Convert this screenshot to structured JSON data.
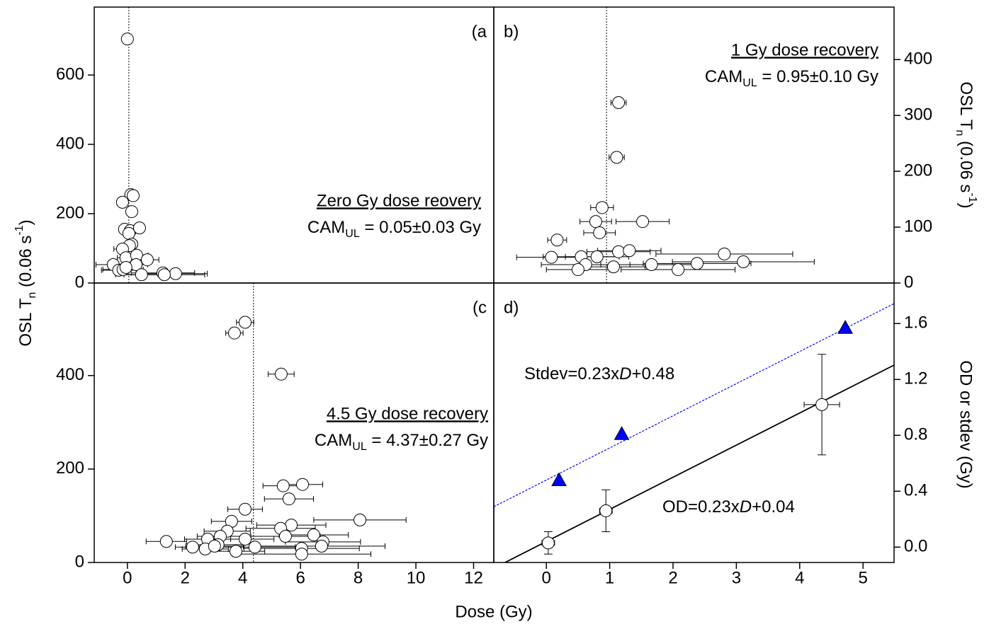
{
  "chart_data": [
    {
      "type": "scatter",
      "panel_label": "(a",
      "yaxis": "left",
      "xlim": [
        -1.15,
        12.7
      ],
      "ylim": [
        0,
        796
      ],
      "yticks": [
        0,
        200,
        400,
        600
      ],
      "ylabel": {
        "main": "OSL T",
        "sub": "n",
        "mid": " (0.06 s",
        "sup": "-1",
        "end": ")"
      },
      "annotation": {
        "title": "Zero Gy dose reovery",
        "cam": "CAM",
        "cam_sub": "UL",
        "cam_text": " = 0.05±0.03 Gy",
        "cam_value": 0.05
      },
      "series": [
        {
          "marker": "circle",
          "color": "#ffffff",
          "x": [
            0,
            0.12,
            0.2,
            -0.17,
            0.15,
            -0.1,
            0.1,
            0.42,
            0.05,
            0.15,
            0.07,
            -0.17,
            -0.05,
            0.32,
            0.69,
            -0.49,
            0.3,
            -0.3,
            -0.15,
            -0.05,
            0.49,
            1.23,
            1.67,
            1.28
          ],
          "values": [
            704,
            255,
            252,
            233,
            206,
            155,
            151,
            159,
            143,
            112,
            108,
            98,
            73,
            80,
            67,
            53,
            53,
            37,
            39,
            45,
            24,
            29,
            27,
            24
          ],
          "xerr": [
            0.05,
            0.1,
            0.1,
            0.1,
            0.1,
            0.15,
            0.15,
            0.15,
            0.15,
            0.2,
            0.2,
            0.3,
            0.3,
            0.4,
            0.4,
            0.6,
            0.4,
            0.6,
            0.7,
            0.5,
            0.9,
            1.1,
            1.1,
            1.4
          ]
        }
      ]
    },
    {
      "type": "scatter",
      "panel_label": "b)",
      "yaxis": "right",
      "xlim": [
        -0.83,
        5.49
      ],
      "ylim": [
        0,
        494
      ],
      "yticks": [
        0,
        100,
        200,
        300,
        400
      ],
      "ylabel": {
        "main": "OSL T",
        "sub": "n",
        "mid": " (0.06 s",
        "sup": "-1",
        "end": ")"
      },
      "annotation": {
        "title": "1 Gy dose recovery",
        "cam": "CAM",
        "cam_sub": "UL",
        "cam_text": " = 0.95±0.10 Gy",
        "cam_value": 0.95
      },
      "series": [
        {
          "marker": "circle",
          "color": "#ffffff",
          "x": [
            1.14,
            1.11,
            0.88,
            1.52,
            0.78,
            0.84,
            0.17,
            1.14,
            1.31,
            2.81,
            0.08,
            0.55,
            0.8,
            3.11,
            0.62,
            1.66,
            2.38,
            1.06,
            0.5,
            2.08
          ],
          "values": [
            323,
            225,
            135,
            110,
            110,
            90,
            77,
            56,
            58,
            52,
            46,
            47,
            47,
            38,
            33,
            33,
            35,
            29,
            24,
            24
          ],
          "xerr": [
            0.12,
            0.12,
            0.18,
            0.42,
            0.25,
            0.25,
            0.15,
            0.5,
            0.5,
            1.08,
            0.55,
            0.6,
            0.5,
            1.12,
            0.7,
            0.8,
            0.85,
            0.5,
            0.5,
            0.9
          ]
        }
      ]
    },
    {
      "type": "scatter",
      "panel_label": "(c",
      "yaxis": "left",
      "xlim": [
        -1.15,
        12.7
      ],
      "ylim": [
        0,
        598
      ],
      "yticks": [
        0,
        200,
        400
      ],
      "xticks": [
        0,
        2,
        4,
        6,
        8,
        10,
        12
      ],
      "xlabel": "Dose (Gy)",
      "annotation": {
        "title": "4.5 Gy dose recovery",
        "cam": "CAM",
        "cam_sub": "UL",
        "cam_text": " = 4.37±0.27 Gy",
        "cam_value": 4.37
      },
      "series": [
        {
          "marker": "circle",
          "color": "#ffffff",
          "x": [
            4.08,
            3.71,
            5.33,
            6.07,
            5.4,
            5.6,
            4.08,
            8.06,
            3.61,
            5.68,
            5.31,
            3.46,
            5.48,
            6.46,
            3.22,
            1.35,
            2.78,
            4.08,
            6.78,
            3.14,
            2.26,
            2.7,
            3.02,
            4.42,
            6.04,
            6.73,
            3.76,
            6.04
          ],
          "values": [
            514,
            491,
            403,
            167,
            164,
            136,
            114,
            91,
            88,
            80,
            73,
            67,
            56,
            59,
            56,
            45,
            50,
            50,
            44,
            38,
            33,
            29,
            35,
            33,
            30,
            35,
            24,
            18
          ],
          "xerr": [
            0.3,
            0.3,
            0.45,
            0.7,
            0.7,
            0.85,
            0.6,
            1.6,
            0.7,
            1.2,
            1.2,
            0.8,
            1.2,
            1.2,
            0.8,
            0.7,
            0.8,
            1.0,
            1.3,
            0.9,
            0.6,
            0.8,
            1.0,
            1.4,
            2.0,
            2.2,
            1.0,
            2.4
          ]
        }
      ]
    },
    {
      "type": "scatter",
      "panel_label": "d)",
      "yaxis": "right",
      "xlim": [
        -0.83,
        5.49
      ],
      "ylim": [
        -0.11,
        1.89
      ],
      "yticks": [
        {
          "value": 0,
          "label": "0.0"
        },
        {
          "value": 0.4,
          "label": "0.4"
        },
        {
          "value": 0.8,
          "label": "0.8"
        },
        {
          "value": 1.2,
          "label": "1.2"
        },
        {
          "value": 1.6,
          "label": "1.6"
        }
      ],
      "xticks": [
        0,
        1,
        2,
        3,
        4,
        5
      ],
      "ylabel": "OD or stdev (Gy)",
      "fits": [
        {
          "label": [
            "Stdev=0.23x",
            "D",
            "+0.48"
          ],
          "slope": 0.23,
          "intercept": 0.48,
          "color": "#0000ff",
          "dashed": true
        },
        {
          "label": [
            "OD=0.23x",
            "D",
            "+0.04"
          ],
          "slope": 0.23,
          "intercept": 0.04,
          "color": "#000000",
          "dashed": false
        }
      ],
      "series": [
        {
          "marker": "circle",
          "color": "#ffffff",
          "x": [
            0.03,
            0.94,
            4.35
          ],
          "values": [
            0.03,
            0.26,
            1.02
          ],
          "xerr": [
            0.1,
            0.1,
            0.28
          ],
          "yerr": [
            0.08,
            0.15,
            0.36
          ]
        },
        {
          "marker": "triangle",
          "color": "#0000ff",
          "x": [
            0.2,
            1.19,
            4.72
          ],
          "values": [
            0.48,
            0.81,
            1.57
          ]
        }
      ]
    }
  ]
}
